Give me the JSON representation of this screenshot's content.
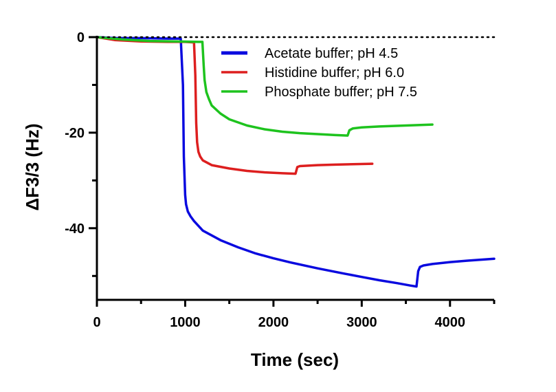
{
  "chart_data": {
    "type": "line",
    "title": "",
    "xlabel": "Time (sec)",
    "ylabel": "ΔF3/3 (Hz)",
    "xlim": [
      0,
      4500
    ],
    "ylim": [
      -55,
      0
    ],
    "x_ticks": [
      0,
      1000,
      2000,
      3000,
      4000
    ],
    "y_ticks": [
      0,
      -20,
      -40
    ],
    "y_minor_ticks": [
      -10,
      -30,
      -50
    ],
    "x_minor_ticks": [
      500,
      1500,
      2500,
      3500,
      4500
    ],
    "zero_reference_line": "dotted",
    "grid": false,
    "legend_position": "top-right",
    "series": [
      {
        "name": "Acetate buffer; pH 4.5",
        "color": "#0a0adf",
        "x": [
          0,
          200,
          500,
          800,
          950,
          975,
          985,
          1000,
          1010,
          1030,
          1060,
          1100,
          1200,
          1400,
          1600,
          1800,
          2000,
          2200,
          2500,
          2800,
          3000,
          3200,
          3400,
          3550,
          3620,
          3640,
          3660,
          3700,
          3800,
          4000,
          4200,
          4500
        ],
        "y": [
          0,
          -0.2,
          -0.2,
          -0.3,
          -0.3,
          -10,
          -25,
          -33,
          -35,
          -36.5,
          -37.5,
          -38.5,
          -40.5,
          -42.5,
          -44,
          -45.3,
          -46.3,
          -47.2,
          -48.4,
          -49.5,
          -50.2,
          -50.9,
          -51.5,
          -52,
          -52.2,
          -49,
          -48.1,
          -47.8,
          -47.5,
          -47.1,
          -46.8,
          -46.4
        ]
      },
      {
        "name": "Histidine buffer; pH 6.0",
        "color": "#dd1f1f",
        "x": [
          0,
          200,
          500,
          800,
          1000,
          1100,
          1115,
          1125,
          1135,
          1150,
          1170,
          1200,
          1300,
          1500,
          1700,
          1900,
          2100,
          2250,
          2270,
          2300,
          2500,
          2700,
          2900,
          3120
        ],
        "y": [
          0,
          -0.6,
          -0.9,
          -1.0,
          -1.0,
          -1.1,
          -8,
          -18,
          -22,
          -24,
          -25,
          -25.8,
          -26.8,
          -27.5,
          -28,
          -28.3,
          -28.5,
          -28.6,
          -27.2,
          -27.0,
          -26.8,
          -26.7,
          -26.6,
          -26.5
        ]
      },
      {
        "name": "Phosphate buffer; pH 7.5",
        "color": "#1ec31e",
        "x": [
          0,
          300,
          600,
          900,
          1150,
          1195,
          1210,
          1220,
          1240,
          1270,
          1300,
          1400,
          1500,
          1700,
          1900,
          2100,
          2300,
          2500,
          2700,
          2840,
          2860,
          2900,
          3000,
          3200,
          3500,
          3800
        ],
        "y": [
          0,
          -0.5,
          -0.8,
          -0.9,
          -1.0,
          -1.0,
          -6,
          -9,
          -11.5,
          -13,
          -14.3,
          -16,
          -17.2,
          -18.5,
          -19.3,
          -19.8,
          -20.1,
          -20.3,
          -20.5,
          -20.6,
          -19.5,
          -19.1,
          -18.9,
          -18.7,
          -18.5,
          -18.3
        ]
      }
    ]
  }
}
